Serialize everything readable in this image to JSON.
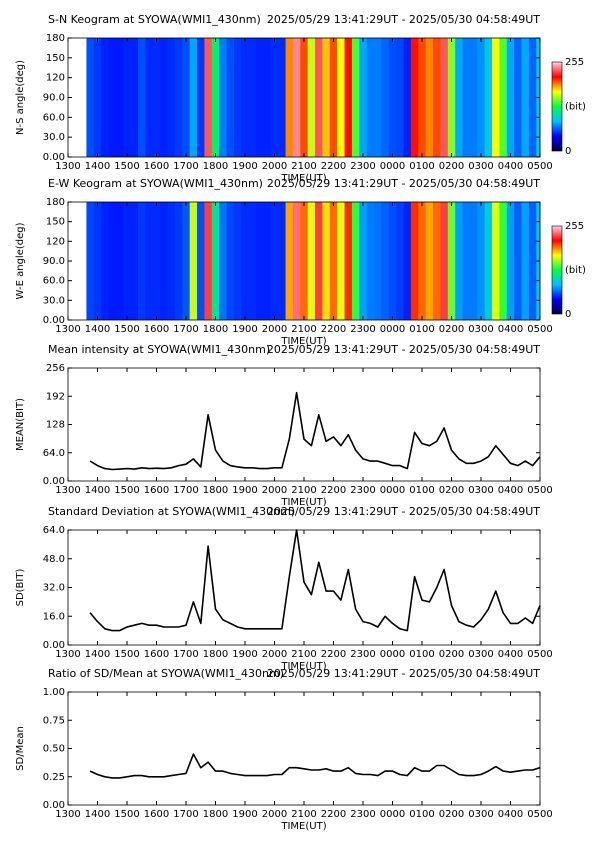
{
  "chart_data": [
    {
      "type": "heatmap",
      "title": "S-N Keogram at SYOWA(WMI1_430nm)",
      "time_range": "2025/05/29 13:41:29UT - 2025/05/30 04:58:49UT",
      "xlabel": "TIME(UT)",
      "ylabel": "N-S angle(deg)",
      "x": [
        13.75,
        14,
        14.25,
        14.5,
        14.75,
        15,
        15.25,
        15.5,
        15.75,
        16,
        16.25,
        16.5,
        16.75,
        17,
        17.25,
        17.5,
        17.75,
        18,
        18.25,
        18.5,
        18.75,
        19,
        19.25,
        19.5,
        19.75,
        20,
        20.25,
        20.5,
        20.75,
        21,
        21.25,
        21.5,
        21.75,
        22,
        22.25,
        22.5,
        22.75,
        23,
        23.25,
        23.5,
        23.75,
        24,
        24.25,
        24.5,
        24.75,
        25,
        25.25,
        25.5,
        25.75,
        26,
        26.25,
        26.5,
        26.75,
        27,
        27.25,
        27.5,
        27.75,
        28,
        28.25,
        28.5,
        28.75,
        29
      ],
      "values": [
        60,
        55,
        50,
        48,
        48,
        50,
        50,
        60,
        52,
        52,
        50,
        52,
        55,
        60,
        80,
        55,
        230,
        120,
        70,
        60,
        55,
        52,
        52,
        50,
        50,
        52,
        52,
        190,
        240,
        200,
        160,
        230,
        180,
        200,
        170,
        210,
        140,
        80,
        70,
        70,
        65,
        60,
        58,
        50,
        210,
        200,
        190,
        200,
        230,
        150,
        80,
        70,
        70,
        75,
        90,
        170,
        140,
        80,
        65,
        80,
        65,
        90
      ],
      "xlim": [
        13,
        29
      ],
      "xticks": [
        {
          "value": 13,
          "label": "1300"
        },
        {
          "value": 14,
          "label": "1400"
        },
        {
          "value": 15,
          "label": "1500"
        },
        {
          "value": 16,
          "label": "1600"
        },
        {
          "value": 17,
          "label": "1700"
        },
        {
          "value": 18,
          "label": "1800"
        },
        {
          "value": 19,
          "label": "1900"
        },
        {
          "value": 20,
          "label": "2000"
        },
        {
          "value": 21,
          "label": "2100"
        },
        {
          "value": 22,
          "label": "2200"
        },
        {
          "value": 23,
          "label": "2300"
        },
        {
          "value": 24,
          "label": "0000"
        },
        {
          "value": 25,
          "label": "0100"
        },
        {
          "value": 26,
          "label": "0200"
        },
        {
          "value": 27,
          "label": "0300"
        },
        {
          "value": 28,
          "label": "0400"
        },
        {
          "value": 29,
          "label": "0500"
        }
      ],
      "ylim": [
        0,
        180
      ],
      "yticks": [
        {
          "value": 0,
          "label": "0.00"
        },
        {
          "value": 30,
          "label": "30.0"
        },
        {
          "value": 60,
          "label": "60.0"
        },
        {
          "value": 90,
          "label": "90.0"
        },
        120,
        150,
        180
      ],
      "colorbar": {
        "min": 0,
        "max": 255,
        "label": "(bit)"
      },
      "colormap": [
        "#000040",
        "#0000ff",
        "#00c0ff",
        "#00ff40",
        "#ffff00",
        "#ff0000",
        "#ffd0e0"
      ]
    },
    {
      "type": "heatmap",
      "title": "E-W Keogram at SYOWA(WMI1_430nm)",
      "time_range": "2025/05/29 13:41:29UT - 2025/05/30 04:58:49UT",
      "xlabel": "TIME(UT)",
      "ylabel": "W-E angle(deg)",
      "x": [
        13.75,
        14,
        14.25,
        14.5,
        14.75,
        15,
        15.25,
        15.5,
        15.75,
        16,
        16.25,
        16.5,
        16.75,
        17,
        17.25,
        17.5,
        17.75,
        18,
        18.25,
        18.5,
        18.75,
        19,
        19.25,
        19.5,
        19.75,
        20,
        20.25,
        20.5,
        20.75,
        21,
        21.25,
        21.5,
        21.75,
        22,
        22.25,
        22.5,
        22.75,
        23,
        23.25,
        23.5,
        23.75,
        24,
        24.25,
        24.5,
        24.75,
        25,
        25.25,
        25.5,
        25.75,
        26,
        26.25,
        26.5,
        26.75,
        27,
        27.25,
        27.5,
        27.75,
        28,
        28.25,
        28.5,
        28.75,
        29
      ],
      "values": [
        58,
        54,
        50,
        48,
        48,
        50,
        50,
        55,
        52,
        52,
        50,
        52,
        55,
        62,
        160,
        60,
        225,
        110,
        68,
        58,
        55,
        52,
        52,
        50,
        50,
        52,
        52,
        185,
        235,
        195,
        165,
        225,
        175,
        195,
        165,
        205,
        135,
        78,
        70,
        68,
        64,
        60,
        56,
        50,
        205,
        195,
        185,
        195,
        225,
        145,
        78,
        70,
        70,
        75,
        92,
        165,
        135,
        78,
        64,
        78,
        64,
        88
      ],
      "xlim": [
        13,
        29
      ],
      "xticks": [
        {
          "value": 13,
          "label": "1300"
        },
        {
          "value": 14,
          "label": "1400"
        },
        {
          "value": 15,
          "label": "1500"
        },
        {
          "value": 16,
          "label": "1600"
        },
        {
          "value": 17,
          "label": "1700"
        },
        {
          "value": 18,
          "label": "1800"
        },
        {
          "value": 19,
          "label": "1900"
        },
        {
          "value": 20,
          "label": "2000"
        },
        {
          "value": 21,
          "label": "2100"
        },
        {
          "value": 22,
          "label": "2200"
        },
        {
          "value": 23,
          "label": "2300"
        },
        {
          "value": 24,
          "label": "0000"
        },
        {
          "value": 25,
          "label": "0100"
        },
        {
          "value": 26,
          "label": "0200"
        },
        {
          "value": 27,
          "label": "0300"
        },
        {
          "value": 28,
          "label": "0400"
        },
        {
          "value": 29,
          "label": "0500"
        }
      ],
      "ylim": [
        0,
        180
      ],
      "yticks": [
        {
          "value": 0,
          "label": "0.00"
        },
        {
          "value": 30,
          "label": "30.0"
        },
        {
          "value": 60,
          "label": "60.0"
        },
        {
          "value": 90,
          "label": "90.0"
        },
        120,
        150,
        180
      ],
      "colorbar": {
        "min": 0,
        "max": 255,
        "label": "(bit)"
      },
      "colormap": [
        "#000040",
        "#0000ff",
        "#00c0ff",
        "#00ff40",
        "#ffff00",
        "#ff0000",
        "#ffd0e0"
      ]
    },
    {
      "type": "line",
      "title": "Mean intensity at SYOWA(WMI1_430nm)",
      "time_range": "2025/05/29 13:41:29UT - 2025/05/30 04:58:49UT",
      "xlabel": "TIME(UT)",
      "ylabel": "MEAN(BIT)",
      "color": "#000000",
      "x": [
        13.75,
        14,
        14.25,
        14.5,
        14.75,
        15,
        15.25,
        15.5,
        15.75,
        16,
        16.25,
        16.5,
        16.75,
        17,
        17.25,
        17.5,
        17.75,
        18,
        18.25,
        18.5,
        18.75,
        19,
        19.25,
        19.5,
        19.75,
        20,
        20.25,
        20.5,
        20.75,
        21,
        21.25,
        21.5,
        21.75,
        22,
        22.25,
        22.5,
        22.75,
        23,
        23.25,
        23.5,
        23.75,
        24,
        24.25,
        24.5,
        24.75,
        25,
        25.25,
        25.5,
        25.75,
        26,
        26.25,
        26.5,
        26.75,
        27,
        27.25,
        27.5,
        27.75,
        28,
        28.25,
        28.5,
        28.75,
        29
      ],
      "values": [
        45,
        35,
        28,
        26,
        27,
        28,
        27,
        30,
        28,
        29,
        28,
        30,
        35,
        38,
        50,
        32,
        150,
        70,
        45,
        35,
        32,
        30,
        30,
        28,
        28,
        30,
        30,
        95,
        200,
        95,
        80,
        150,
        90,
        100,
        80,
        105,
        70,
        50,
        45,
        45,
        40,
        35,
        35,
        28,
        110,
        85,
        80,
        90,
        120,
        70,
        50,
        40,
        40,
        45,
        55,
        80,
        60,
        40,
        35,
        45,
        35,
        55
      ],
      "xlim": [
        13,
        29
      ],
      "xticks": [
        {
          "value": 13,
          "label": "1300"
        },
        {
          "value": 14,
          "label": "1400"
        },
        {
          "value": 15,
          "label": "1500"
        },
        {
          "value": 16,
          "label": "1600"
        },
        {
          "value": 17,
          "label": "1700"
        },
        {
          "value": 18,
          "label": "1800"
        },
        {
          "value": 19,
          "label": "1900"
        },
        {
          "value": 20,
          "label": "2000"
        },
        {
          "value": 21,
          "label": "2100"
        },
        {
          "value": 22,
          "label": "2200"
        },
        {
          "value": 23,
          "label": "2300"
        },
        {
          "value": 24,
          "label": "0000"
        },
        {
          "value": 25,
          "label": "0100"
        },
        {
          "value": 26,
          "label": "0200"
        },
        {
          "value": 27,
          "label": "0300"
        },
        {
          "value": 28,
          "label": "0400"
        },
        {
          "value": 29,
          "label": "0500"
        }
      ],
      "ylim": [
        0,
        256
      ],
      "yticks": [
        {
          "value": 0,
          "label": "0.00"
        },
        {
          "value": 64,
          "label": "64.0"
        },
        128,
        192,
        256
      ]
    },
    {
      "type": "line",
      "title": "Standard Deviation at SYOWA(WMI1_430nm)",
      "time_range": "2025/05/29 13:41:29UT - 2025/05/30 04:58:49UT",
      "xlabel": "TIME(UT)",
      "ylabel": "SD(BIT)",
      "color": "#000000",
      "x": [
        13.75,
        14,
        14.25,
        14.5,
        14.75,
        15,
        15.25,
        15.5,
        15.75,
        16,
        16.25,
        16.5,
        16.75,
        17,
        17.25,
        17.5,
        17.75,
        18,
        18.25,
        18.5,
        18.75,
        19,
        19.25,
        19.5,
        19.75,
        20,
        20.25,
        20.5,
        20.75,
        21,
        21.25,
        21.5,
        21.75,
        22,
        22.25,
        22.5,
        22.75,
        23,
        23.25,
        23.5,
        23.75,
        24,
        24.25,
        24.5,
        24.75,
        25,
        25.25,
        25.5,
        25.75,
        26,
        26.25,
        26.5,
        26.75,
        27,
        27.25,
        27.5,
        27.75,
        28,
        28.25,
        28.5,
        28.75,
        29
      ],
      "values": [
        18,
        13,
        9,
        8,
        8,
        10,
        11,
        12,
        11,
        11,
        10,
        10,
        10,
        11,
        24,
        12,
        55,
        20,
        14,
        12,
        10,
        9,
        9,
        9,
        9,
        9,
        9,
        38,
        64,
        35,
        28,
        46,
        30,
        30,
        25,
        42,
        20,
        13,
        12,
        10,
        16,
        12,
        9,
        8,
        38,
        25,
        24,
        32,
        42,
        22,
        13,
        11,
        10,
        14,
        20,
        30,
        18,
        12,
        12,
        15,
        12,
        22
      ],
      "xlim": [
        13,
        29
      ],
      "xticks": [
        {
          "value": 13,
          "label": "1300"
        },
        {
          "value": 14,
          "label": "1400"
        },
        {
          "value": 15,
          "label": "1500"
        },
        {
          "value": 16,
          "label": "1600"
        },
        {
          "value": 17,
          "label": "1700"
        },
        {
          "value": 18,
          "label": "1800"
        },
        {
          "value": 19,
          "label": "1900"
        },
        {
          "value": 20,
          "label": "2000"
        },
        {
          "value": 21,
          "label": "2100"
        },
        {
          "value": 22,
          "label": "2200"
        },
        {
          "value": 23,
          "label": "2300"
        },
        {
          "value": 24,
          "label": "0000"
        },
        {
          "value": 25,
          "label": "0100"
        },
        {
          "value": 26,
          "label": "0200"
        },
        {
          "value": 27,
          "label": "0300"
        },
        {
          "value": 28,
          "label": "0400"
        },
        {
          "value": 29,
          "label": "0500"
        }
      ],
      "ylim": [
        0,
        64
      ],
      "yticks": [
        {
          "value": 0,
          "label": "0.00"
        },
        {
          "value": 16,
          "label": "16.0"
        },
        {
          "value": 32,
          "label": "32.0"
        },
        {
          "value": 48,
          "label": "48.0"
        },
        {
          "value": 64,
          "label": "64.0"
        }
      ]
    },
    {
      "type": "line",
      "title": "Ratio of SD/Mean at SYOWA(WMI1_430nm)",
      "time_range": "2025/05/29 13:41:29UT - 2025/05/30 04:58:49UT",
      "xlabel": "TIME(UT)",
      "ylabel": "SD/Mean",
      "color": "#000000",
      "x": [
        13.75,
        14,
        14.25,
        14.5,
        14.75,
        15,
        15.25,
        15.5,
        15.75,
        16,
        16.25,
        16.5,
        16.75,
        17,
        17.25,
        17.5,
        17.75,
        18,
        18.25,
        18.5,
        18.75,
        19,
        19.25,
        19.5,
        19.75,
        20,
        20.25,
        20.5,
        20.75,
        21,
        21.25,
        21.5,
        21.75,
        22,
        22.25,
        22.5,
        22.75,
        23,
        23.25,
        23.5,
        23.75,
        24,
        24.25,
        24.5,
        24.75,
        25,
        25.25,
        25.5,
        25.75,
        26,
        26.25,
        26.5,
        26.75,
        27,
        27.25,
        27.5,
        27.75,
        28,
        28.25,
        28.5,
        28.75,
        29
      ],
      "values": [
        0.3,
        0.27,
        0.25,
        0.24,
        0.24,
        0.25,
        0.26,
        0.26,
        0.25,
        0.25,
        0.25,
        0.26,
        0.27,
        0.28,
        0.45,
        0.33,
        0.38,
        0.3,
        0.3,
        0.28,
        0.27,
        0.26,
        0.26,
        0.26,
        0.26,
        0.27,
        0.27,
        0.33,
        0.33,
        0.32,
        0.31,
        0.31,
        0.32,
        0.3,
        0.3,
        0.33,
        0.28,
        0.27,
        0.27,
        0.26,
        0.3,
        0.3,
        0.27,
        0.26,
        0.33,
        0.3,
        0.3,
        0.35,
        0.35,
        0.31,
        0.27,
        0.26,
        0.26,
        0.27,
        0.3,
        0.34,
        0.3,
        0.29,
        0.3,
        0.31,
        0.31,
        0.33
      ],
      "xlim": [
        13,
        29
      ],
      "xticks": [
        {
          "value": 13,
          "label": "1300"
        },
        {
          "value": 14,
          "label": "1400"
        },
        {
          "value": 15,
          "label": "1500"
        },
        {
          "value": 16,
          "label": "1600"
        },
        {
          "value": 17,
          "label": "1700"
        },
        {
          "value": 18,
          "label": "1800"
        },
        {
          "value": 19,
          "label": "1900"
        },
        {
          "value": 20,
          "label": "2000"
        },
        {
          "value": 21,
          "label": "2100"
        },
        {
          "value": 22,
          "label": "2200"
        },
        {
          "value": 23,
          "label": "2300"
        },
        {
          "value": 24,
          "label": "0000"
        },
        {
          "value": 25,
          "label": "0100"
        },
        {
          "value": 26,
          "label": "0200"
        },
        {
          "value": 27,
          "label": "0300"
        },
        {
          "value": 28,
          "label": "0400"
        },
        {
          "value": 29,
          "label": "0500"
        }
      ],
      "ylim": [
        0,
        1
      ],
      "yticks": [
        {
          "value": 0,
          "label": "0.00"
        },
        0.25,
        {
          "value": 0.5,
          "label": "0.50"
        },
        0.75,
        {
          "value": 1,
          "label": "1.00"
        }
      ]
    }
  ]
}
